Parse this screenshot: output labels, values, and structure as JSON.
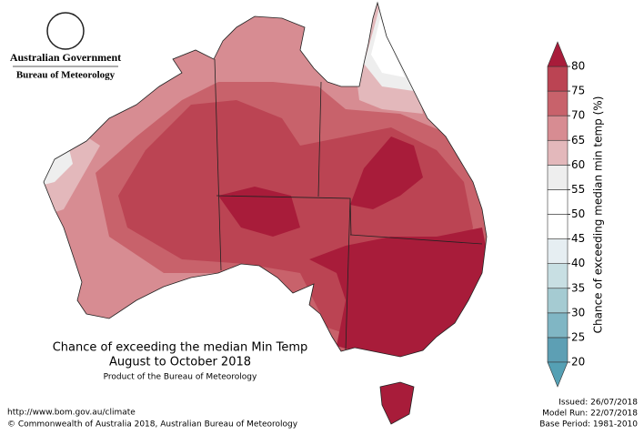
{
  "header": {
    "government": "Australian Government",
    "bureau": "Bureau of Meteorology"
  },
  "title": {
    "line1": "Chance of exceeding the median Min Temp",
    "line2": "August to October 2018",
    "product": "Product of the Bureau of Meteorology"
  },
  "footer": {
    "url": "http://www.bom.gov.au/climate",
    "copyright": "© Commonwealth of Australia 2018, Australian Bureau of Meteorology",
    "issued": "Issued: 26/07/2018",
    "model_run": "Model Run: 22/07/2018",
    "base_period": "Base Period: 1981-2010"
  },
  "colorbar": {
    "label": "Chance of exceeding median min temp (%)",
    "ticks": [
      20,
      25,
      30,
      35,
      40,
      45,
      50,
      55,
      60,
      65,
      70,
      75,
      80
    ],
    "colors": [
      "#5d9fb4",
      "#80b6c4",
      "#a5cbd2",
      "#c8dfe3",
      "#e6eef2",
      "#ffffff",
      "#ffffff",
      "#eeeeee",
      "#e3b8bb",
      "#d78c92",
      "#c8626b",
      "#bb4453"
    ],
    "under_color": "#55a0b4",
    "over_color": "#a81c3a"
  }
}
